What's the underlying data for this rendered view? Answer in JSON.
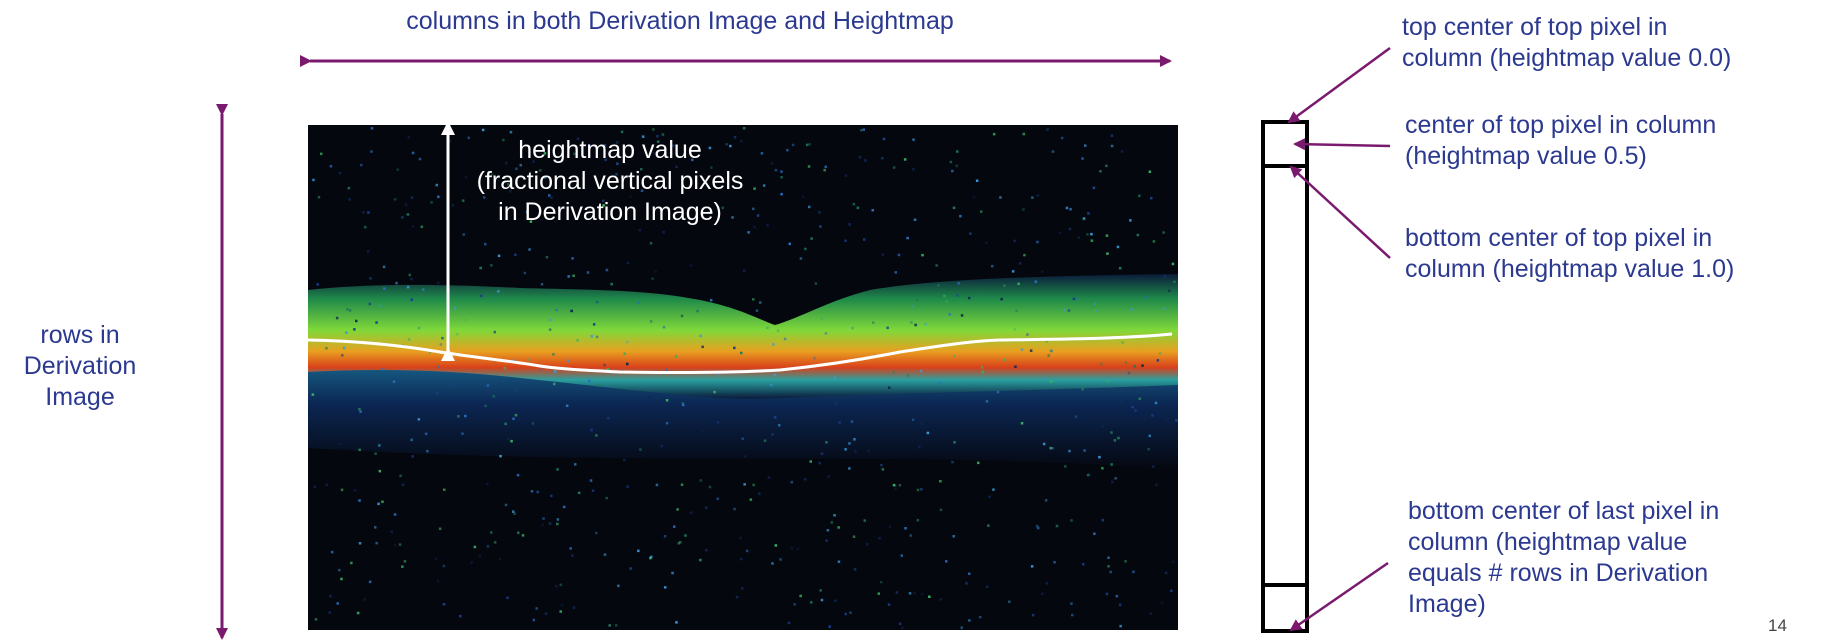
{
  "labels": {
    "columns": "columns in both Derivation Image and Heightmap",
    "rows": [
      "rows in",
      "Derivation",
      "Image"
    ],
    "heightmap_value": [
      "heightmap value",
      "(fractional vertical pixels",
      "in Derivation Image)"
    ],
    "top_center": [
      "top center of top pixel in",
      "column (heightmap value 0.0)"
    ],
    "center_top": [
      "center of top pixel in column",
      "(heightmap value 0.5)"
    ],
    "bottom_center_top": [
      "bottom center of top pixel in",
      "column (heightmap value 1.0)"
    ],
    "bottom_center_last": [
      "bottom center of last pixel in",
      "column (heightmap value",
      "equals # rows in Derivation",
      "Image)"
    ]
  },
  "page_number": "14",
  "colors": {
    "text": "#2b3990",
    "arrow": "#7a1a6e",
    "oct_background": "#05070f",
    "heightmap_line": "#ffffff"
  }
}
